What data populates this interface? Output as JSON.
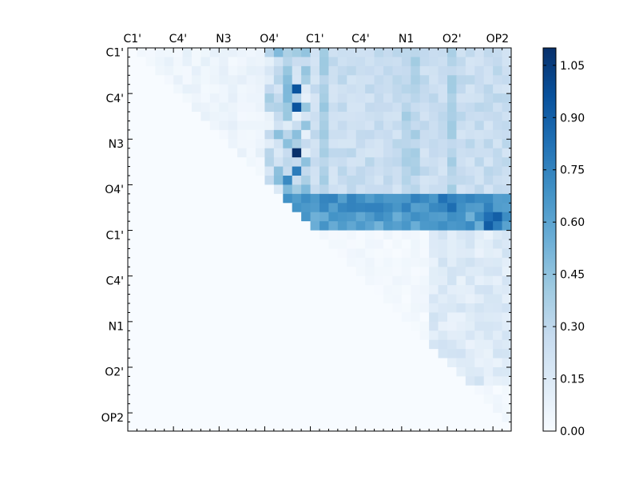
{
  "chart_data": {
    "type": "heatmap",
    "title": "",
    "xlabel": "",
    "ylabel": "",
    "x_tick_labels": [
      "C1'",
      "C4'",
      "N3",
      "O4'",
      "C1'",
      "C4'",
      "N1",
      "O2'",
      "OP2"
    ],
    "y_tick_labels": [
      "C1'",
      "C4'",
      "N3",
      "O4'",
      "C1'",
      "C4'",
      "N1",
      "O2'",
      "OP2"
    ],
    "n_rows": 42,
    "n_cols": 42,
    "colormap": "Blues",
    "colorbar": {
      "min": 0.0,
      "max": 1.1,
      "ticks": [
        0.0,
        0.15,
        0.3,
        0.45,
        0.6,
        0.75,
        0.9,
        1.05
      ],
      "tick_labels": [
        "0.00",
        "0.15",
        "0.30",
        "0.45",
        "0.60",
        "0.75",
        "0.90",
        "1.05"
      ]
    },
    "grid": false,
    "triangle": "upper"
  }
}
